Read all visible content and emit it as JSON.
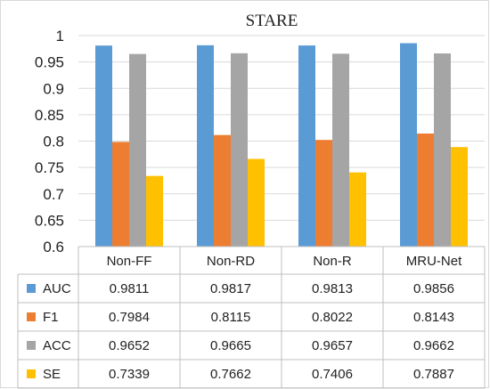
{
  "chart_data": {
    "type": "bar",
    "title": "STARE",
    "categories": [
      "Non-FF",
      "Non-RD",
      "Non-R",
      "MRU-Net"
    ],
    "series": [
      {
        "name": "AUC",
        "color": "#5b9bd5",
        "values": [
          0.9811,
          0.9817,
          0.9813,
          0.9856
        ]
      },
      {
        "name": "F1",
        "color": "#ed7d31",
        "values": [
          0.7984,
          0.8115,
          0.8022,
          0.8143
        ]
      },
      {
        "name": "ACC",
        "color": "#a5a5a5",
        "values": [
          0.9652,
          0.9665,
          0.9657,
          0.9662
        ]
      },
      {
        "name": "SE",
        "color": "#ffc000",
        "values": [
          0.7339,
          0.7662,
          0.7406,
          0.7887
        ]
      }
    ],
    "yticks": [
      "0.6",
      "0.65",
      "0.7",
      "0.75",
      "0.8",
      "0.85",
      "0.9",
      "0.95",
      "1"
    ],
    "ylim": [
      0.6,
      1.0
    ],
    "grid": true,
    "data_table": true,
    "table_cells": [
      [
        "0.9811",
        "0.9817",
        "0.9813",
        "0.9856"
      ],
      [
        "0.7984",
        "0.8115",
        "0.8022",
        "0.8143"
      ],
      [
        "0.9652",
        "0.9665",
        "0.9657",
        "0.9662"
      ],
      [
        "0.7339",
        "0.7662",
        "0.7406",
        "0.7887"
      ]
    ]
  }
}
